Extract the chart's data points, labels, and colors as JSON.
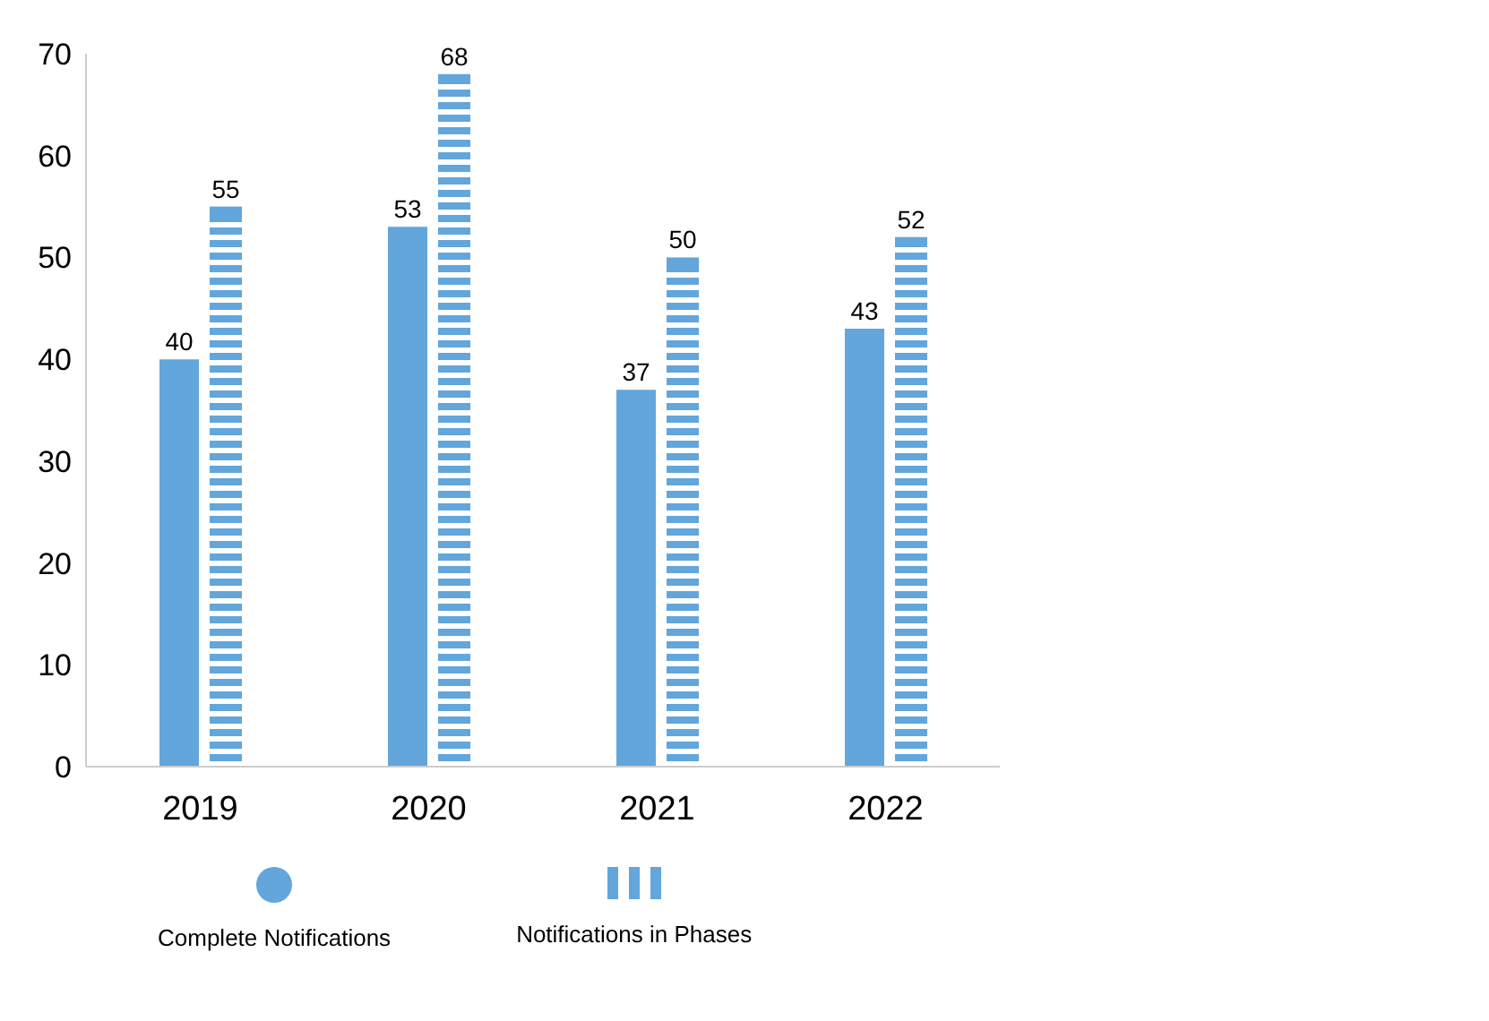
{
  "chart_data": {
    "type": "bar",
    "categories": [
      "2019",
      "2020",
      "2021",
      "2022"
    ],
    "series": [
      {
        "name": "Complete Notifications",
        "color": "#62a6dc",
        "values": [
          40,
          53,
          37,
          43
        ]
      },
      {
        "name": "Notifications in Phases",
        "color": "#62a6dc",
        "values": [
          55,
          68,
          50,
          52
        ]
      }
    ],
    "ylim": [
      0,
      70
    ],
    "yticks": [
      0,
      10,
      20,
      30,
      40,
      50,
      60,
      70
    ],
    "data_labels": true,
    "legend": "bottom",
    "grid": false
  }
}
